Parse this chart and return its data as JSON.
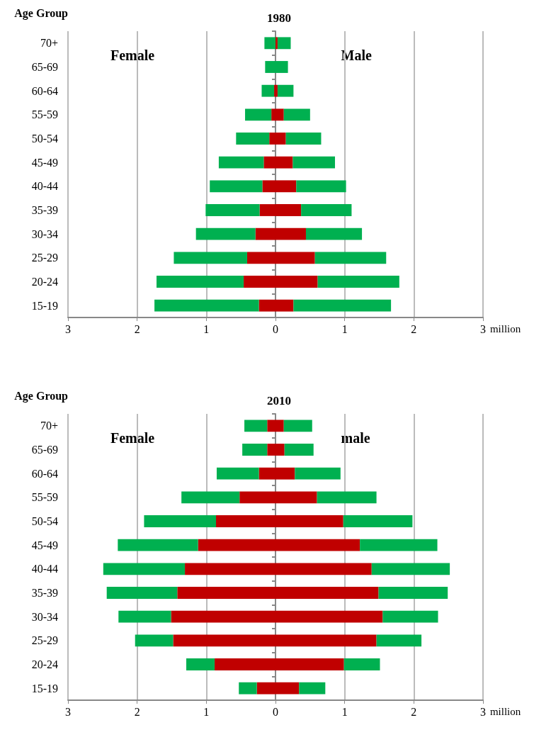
{
  "chart_data": [
    {
      "type": "bar",
      "title": "1980",
      "ylabel": "Age Group",
      "xlabel": "million",
      "annotations": [
        "Female",
        "Male"
      ],
      "orientation": "horizontal",
      "stacked": true,
      "grid": "x",
      "categories": [
        "70+",
        "65-69",
        "60-64",
        "55-59",
        "50-54",
        "45-49",
        "40-44",
        "35-39",
        "30-34",
        "25-29",
        "20-24",
        "15-19"
      ],
      "xlim": [
        -3,
        3
      ],
      "xticks": [
        {
          "value": -3,
          "label": "3"
        },
        {
          "value": -2,
          "label": "2"
        },
        {
          "value": -1,
          "label": "1"
        },
        0,
        1,
        2,
        3
      ],
      "series": [
        {
          "color": "#c00000",
          "values": [
            0,
            0,
            -0.02,
            -0.06,
            -0.09,
            -0.17,
            -0.19,
            -0.23,
            -0.29,
            -0.41,
            -0.46,
            -0.24
          ]
        },
        {
          "color": "#00b050",
          "values": [
            -0.16,
            -0.15,
            -0.18,
            -0.38,
            -0.48,
            -0.65,
            -0.76,
            -0.78,
            -0.86,
            -1.06,
            -1.26,
            -1.51
          ]
        },
        {
          "color": "#c00000",
          "values": [
            0.03,
            0,
            0.03,
            0.12,
            0.15,
            0.25,
            0.3,
            0.37,
            0.44,
            0.57,
            0.61,
            0.26
          ]
        },
        {
          "color": "#00b050",
          "values": [
            0.19,
            0.18,
            0.23,
            0.38,
            0.51,
            0.61,
            0.72,
            0.73,
            0.81,
            1.03,
            1.18,
            1.41
          ]
        }
      ]
    },
    {
      "type": "bar",
      "title": "2010",
      "ylabel": "Age Group",
      "xlabel": "million",
      "annotations": [
        "Female",
        "male"
      ],
      "orientation": "horizontal",
      "stacked": true,
      "grid": "x",
      "categories": [
        "70+",
        "65-69",
        "60-64",
        "55-59",
        "50-54",
        "45-49",
        "40-44",
        "35-39",
        "30-34",
        "25-29",
        "20-24",
        "15-19"
      ],
      "xlim": [
        -3,
        3
      ],
      "xticks": [
        {
          "value": -3,
          "label": "3"
        },
        {
          "value": -2,
          "label": "2"
        },
        {
          "value": -1,
          "label": "1"
        },
        0,
        1,
        2,
        3
      ],
      "series": [
        {
          "color": "#c00000",
          "values": [
            -0.12,
            -0.12,
            -0.24,
            -0.52,
            -0.86,
            -1.12,
            -1.31,
            -1.42,
            -1.51,
            -1.48,
            -0.88,
            -0.27
          ]
        },
        {
          "color": "#00b050",
          "values": [
            -0.33,
            -0.36,
            -0.61,
            -0.84,
            -1.04,
            -1.16,
            -1.18,
            -1.02,
            -0.76,
            -0.55,
            -0.41,
            -0.26
          ]
        },
        {
          "color": "#c00000",
          "values": [
            0.12,
            0.13,
            0.28,
            0.6,
            0.98,
            1.22,
            1.39,
            1.49,
            1.55,
            1.46,
            0.99,
            0.34
          ]
        },
        {
          "color": "#00b050",
          "values": [
            0.41,
            0.42,
            0.66,
            0.86,
            1.0,
            1.12,
            1.13,
            1.0,
            0.8,
            0.65,
            0.52,
            0.38
          ]
        }
      ]
    }
  ]
}
